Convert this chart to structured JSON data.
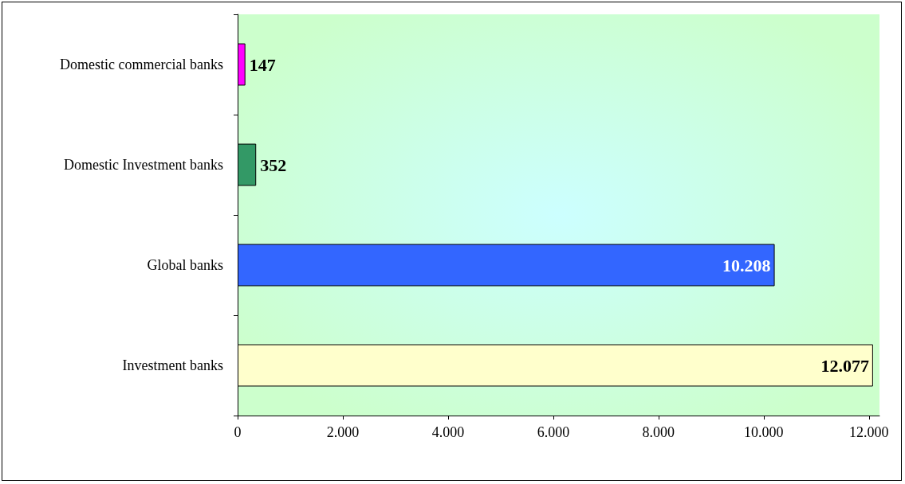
{
  "chart_data": {
    "type": "bar",
    "orientation": "horizontal",
    "categories": [
      "Domestic commercial banks",
      "Domestic Investment banks",
      "Global banks",
      "Investment banks"
    ],
    "values": [
      147,
      352,
      10208,
      12077
    ],
    "colors": [
      "#ff00ff",
      "#339966",
      "#3366ff",
      "#ffffcc"
    ],
    "value_labels": [
      "147",
      "352",
      "10.208",
      "12.077"
    ],
    "xlim": [
      0,
      12200
    ],
    "xticks": [
      0,
      {
        "value": 2000,
        "label": "2.000"
      },
      {
        "value": 4000,
        "label": "4.000"
      },
      {
        "value": 6000,
        "label": "6.000"
      },
      {
        "value": 8000,
        "label": "8.000"
      },
      {
        "value": 10000,
        "label": "10.000"
      },
      {
        "value": 12000,
        "label": "12.000"
      }
    ],
    "grid": false
  }
}
